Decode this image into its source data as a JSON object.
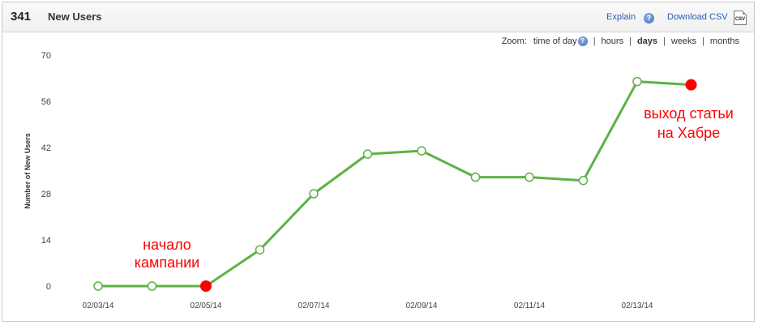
{
  "header": {
    "count": "341",
    "title": "New Users",
    "explain_label": "Explain",
    "explain_help_glyph": "?",
    "download_label": "Download CSV",
    "csv_icon_text": "CSV"
  },
  "zoom": {
    "label": "Zoom:",
    "options": [
      "time of day",
      "hours",
      "days",
      "weeks",
      "months"
    ],
    "selected": "days"
  },
  "chart_data": {
    "type": "line",
    "title": "",
    "xlabel": "",
    "ylabel": "Number of New Users",
    "ylim": [
      0,
      70
    ],
    "yticks": [
      0,
      14,
      28,
      42,
      56,
      70
    ],
    "x": [
      "02/03/14",
      "02/04/14",
      "02/05/14",
      "02/06/14",
      "02/07/14",
      "02/08/14",
      "02/09/14",
      "02/10/14",
      "02/11/14",
      "02/12/14",
      "02/13/14",
      "02/14/14"
    ],
    "xtick_labels": [
      "02/03/14",
      "02/05/14",
      "02/07/14",
      "02/09/14",
      "02/11/14",
      "02/13/14"
    ],
    "series": [
      {
        "values": [
          0,
          0,
          0,
          11,
          28,
          40,
          41,
          33,
          33,
          32,
          62,
          61
        ],
        "color": "#5cb246"
      }
    ],
    "highlight_points": [
      2,
      11
    ],
    "highlight_color": "#ff0000",
    "grid": false,
    "annotations": [
      {
        "text": "начало\nкампании",
        "point_index": 2,
        "color": "#ff0000"
      },
      {
        "text": "выход статьи\nна Хабре",
        "point_index": 11,
        "color": "#ff0000"
      }
    ]
  }
}
